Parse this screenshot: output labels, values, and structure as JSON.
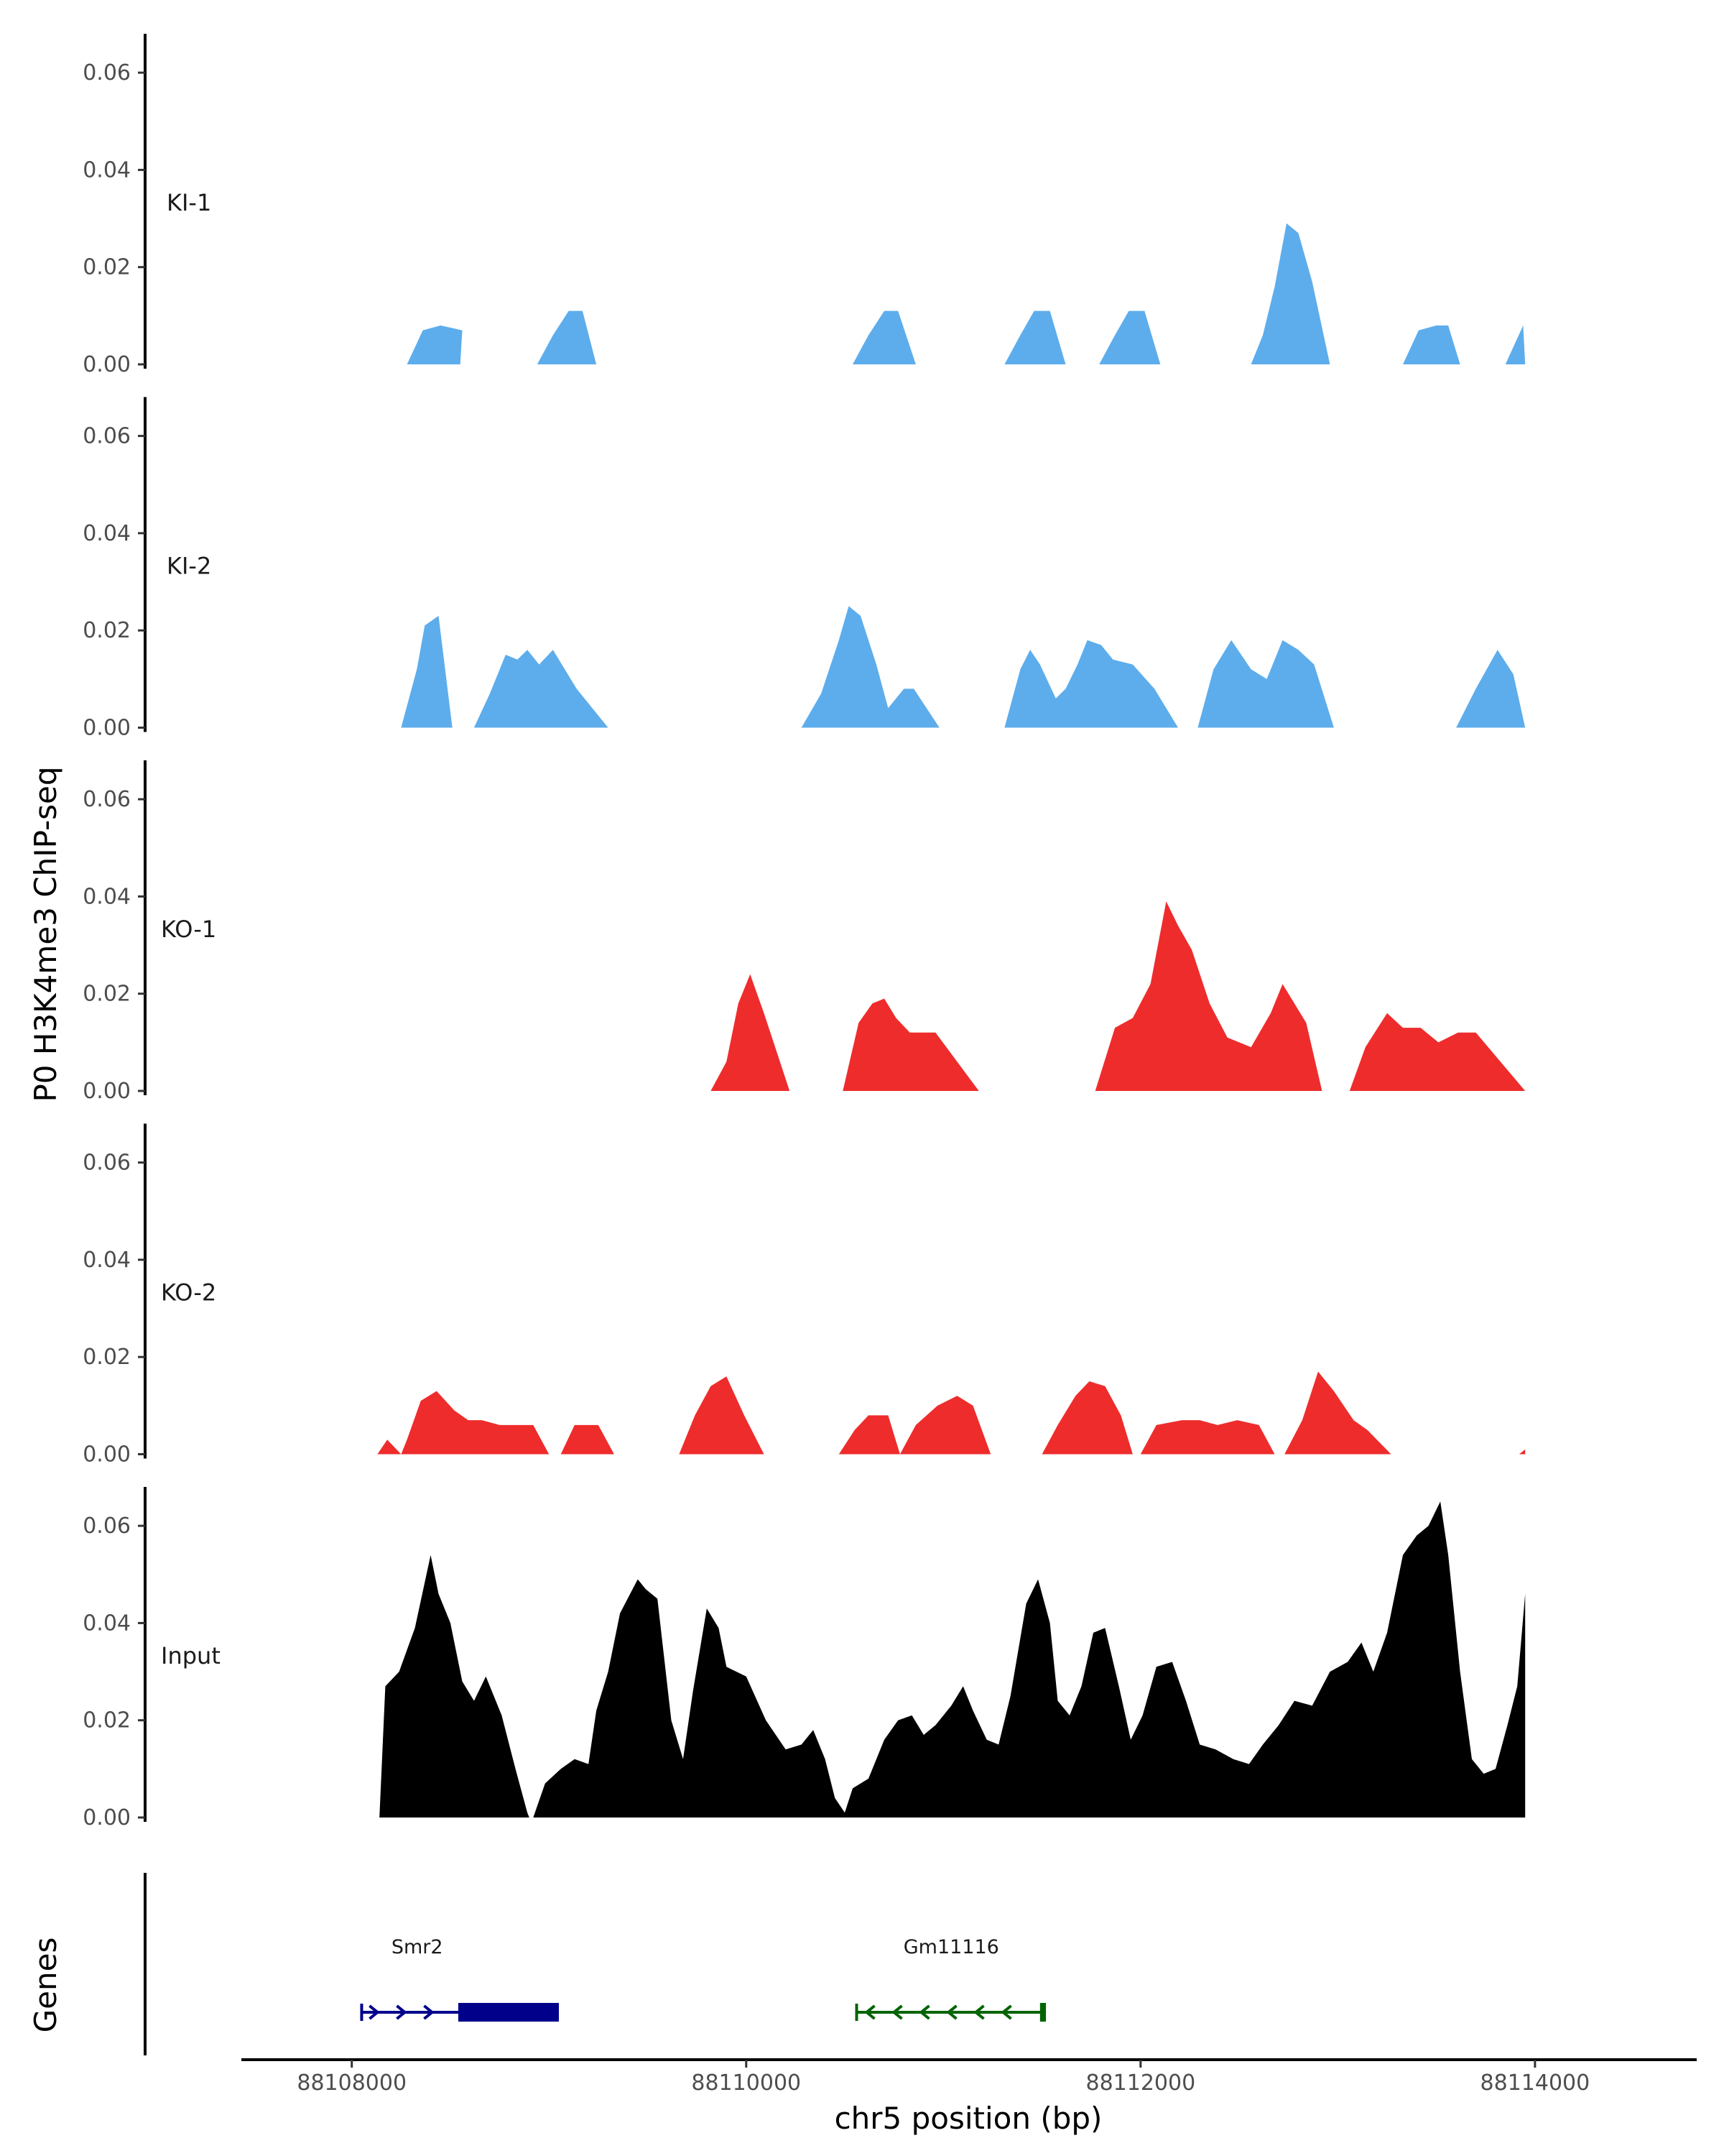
{
  "chart_data": {
    "type": "area",
    "ylabel": "P0 H3K4me3 ChIP-seq",
    "xlabel": "chr5 position (bp)",
    "gene_panel_label": "Genes",
    "xlim": [
      88107440,
      88114820
    ],
    "ylim": [
      0,
      0.068
    ],
    "x_ticks": [
      88108000,
      88110000,
      88112000,
      88114000
    ],
    "x_tick_labels": [
      "88108000",
      "88110000",
      "88112000",
      "88114000"
    ],
    "y_ticks": [
      0,
      0.02,
      0.04,
      0.06
    ],
    "y_tick_labels": [
      "0.00",
      "0.02",
      "0.04",
      "0.06"
    ],
    "tracks": [
      {
        "name": "KI-1",
        "color": "#5DADEC",
        "points": [
          [
            88108280,
            0
          ],
          [
            88108360,
            0.007
          ],
          [
            88108450,
            0.008
          ],
          [
            88108560,
            0.007
          ],
          [
            88108550,
            0
          ],
          [
            88108940,
            0
          ],
          [
            88109020,
            0.006
          ],
          [
            88109100,
            0.011
          ],
          [
            88109170,
            0.011
          ],
          [
            88109240,
            0
          ],
          [
            88110540,
            0
          ],
          [
            88110620,
            0.006
          ],
          [
            88110700,
            0.011
          ],
          [
            88110770,
            0.011
          ],
          [
            88110860,
            0
          ],
          [
            88111310,
            0
          ],
          [
            88111390,
            0.006
          ],
          [
            88111460,
            0.011
          ],
          [
            88111540,
            0.011
          ],
          [
            88111620,
            0
          ],
          [
            88111790,
            0
          ],
          [
            88111870,
            0.006
          ],
          [
            88111940,
            0.011
          ],
          [
            88112020,
            0.011
          ],
          [
            88112100,
            0
          ],
          [
            88112560,
            0
          ],
          [
            88112620,
            0.006
          ],
          [
            88112680,
            0.016
          ],
          [
            88112740,
            0.029
          ],
          [
            88112800,
            0.027
          ],
          [
            88112870,
            0.017
          ],
          [
            88112960,
            0
          ],
          [
            88113330,
            0
          ],
          [
            88113410,
            0.007
          ],
          [
            88113500,
            0.008
          ],
          [
            88113560,
            0.008
          ],
          [
            88113620,
            0
          ],
          [
            88113850,
            0
          ],
          [
            88113940,
            0.008
          ],
          [
            88113950,
            0
          ]
        ]
      },
      {
        "name": "KI-2",
        "color": "#5DADEC",
        "points": [
          [
            88108250,
            0
          ],
          [
            88108330,
            0.012
          ],
          [
            88108370,
            0.021
          ],
          [
            88108440,
            0.023
          ],
          [
            88108510,
            0
          ],
          [
            88108620,
            0
          ],
          [
            88108700,
            0.007
          ],
          [
            88108780,
            0.015
          ],
          [
            88108840,
            0.014
          ],
          [
            88108890,
            0.016
          ],
          [
            88108950,
            0.013
          ],
          [
            88109020,
            0.016
          ],
          [
            88109140,
            0.008
          ],
          [
            88109300,
            0
          ],
          [
            88110280,
            0
          ],
          [
            88110380,
            0.007
          ],
          [
            88110470,
            0.018
          ],
          [
            88110520,
            0.025
          ],
          [
            88110580,
            0.023
          ],
          [
            88110660,
            0.013
          ],
          [
            88110720,
            0.004
          ],
          [
            88110800,
            0.008
          ],
          [
            88110850,
            0.008
          ],
          [
            88110980,
            0
          ],
          [
            88111310,
            0
          ],
          [
            88111390,
            0.012
          ],
          [
            88111440,
            0.016
          ],
          [
            88111490,
            0.013
          ],
          [
            88111570,
            0.006
          ],
          [
            88111620,
            0.008
          ],
          [
            88111680,
            0.013
          ],
          [
            88111730,
            0.018
          ],
          [
            88111800,
            0.017
          ],
          [
            88111860,
            0.014
          ],
          [
            88111960,
            0.013
          ],
          [
            88112070,
            0.008
          ],
          [
            88112190,
            0
          ],
          [
            88112290,
            0
          ],
          [
            88112370,
            0.012
          ],
          [
            88112460,
            0.018
          ],
          [
            88112560,
            0.012
          ],
          [
            88112640,
            0.01
          ],
          [
            88112720,
            0.018
          ],
          [
            88112800,
            0.016
          ],
          [
            88112880,
            0.013
          ],
          [
            88112980,
            0
          ],
          [
            88113600,
            0
          ],
          [
            88113700,
            0.008
          ],
          [
            88113810,
            0.016
          ],
          [
            88113890,
            0.011
          ],
          [
            88113950,
            0
          ]
        ]
      },
      {
        "name": "KO-1",
        "color": "#EE2C2C",
        "points": [
          [
            88109820,
            0
          ],
          [
            88109900,
            0.006
          ],
          [
            88109960,
            0.018
          ],
          [
            88110020,
            0.024
          ],
          [
            88110090,
            0.016
          ],
          [
            88110220,
            0
          ],
          [
            88110490,
            0
          ],
          [
            88110570,
            0.014
          ],
          [
            88110640,
            0.018
          ],
          [
            88110700,
            0.019
          ],
          [
            88110760,
            0.015
          ],
          [
            88110830,
            0.012
          ],
          [
            88110960,
            0.012
          ],
          [
            88111180,
            0
          ],
          [
            88111770,
            0
          ],
          [
            88111870,
            0.013
          ],
          [
            88111960,
            0.015
          ],
          [
            88112050,
            0.022
          ],
          [
            88112130,
            0.039
          ],
          [
            88112190,
            0.034
          ],
          [
            88112260,
            0.029
          ],
          [
            88112350,
            0.018
          ],
          [
            88112440,
            0.011
          ],
          [
            88112560,
            0.009
          ],
          [
            88112660,
            0.016
          ],
          [
            88112720,
            0.022
          ],
          [
            88112840,
            0.014
          ],
          [
            88112920,
            0
          ],
          [
            88113060,
            0
          ],
          [
            88113140,
            0.009
          ],
          [
            88113250,
            0.016
          ],
          [
            88113330,
            0.013
          ],
          [
            88113420,
            0.013
          ],
          [
            88113510,
            0.01
          ],
          [
            88113610,
            0.012
          ],
          [
            88113700,
            0.012
          ],
          [
            88113950,
            0
          ]
        ]
      },
      {
        "name": "KO-2",
        "color": "#EE2C2C",
        "points": [
          [
            88108130,
            0
          ],
          [
            88108180,
            0.003
          ],
          [
            88108250,
            0
          ],
          [
            88108280,
            0.003
          ],
          [
            88108350,
            0.011
          ],
          [
            88108430,
            0.013
          ],
          [
            88108520,
            0.009
          ],
          [
            88108590,
            0.007
          ],
          [
            88108660,
            0.007
          ],
          [
            88108750,
            0.006
          ],
          [
            88108920,
            0.006
          ],
          [
            88109000,
            0
          ],
          [
            88109060,
            0
          ],
          [
            88109130,
            0.006
          ],
          [
            88109250,
            0.006
          ],
          [
            88109330,
            0
          ],
          [
            88109660,
            0
          ],
          [
            88109740,
            0.008
          ],
          [
            88109820,
            0.014
          ],
          [
            88109900,
            0.016
          ],
          [
            88109990,
            0.008
          ],
          [
            88110090,
            0
          ],
          [
            88110470,
            0
          ],
          [
            88110550,
            0.005
          ],
          [
            88110620,
            0.008
          ],
          [
            88110720,
            0.008
          ],
          [
            88110780,
            0
          ],
          [
            88110780,
            0
          ],
          [
            88110860,
            0.006
          ],
          [
            88110970,
            0.01
          ],
          [
            88111070,
            0.012
          ],
          [
            88111150,
            0.01
          ],
          [
            88111240,
            0
          ],
          [
            88111500,
            0
          ],
          [
            88111580,
            0.006
          ],
          [
            88111670,
            0.012
          ],
          [
            88111740,
            0.015
          ],
          [
            88111820,
            0.014
          ],
          [
            88111900,
            0.008
          ],
          [
            88111960,
            0
          ],
          [
            88112000,
            0
          ],
          [
            88112080,
            0.006
          ],
          [
            88112210,
            0.007
          ],
          [
            88112300,
            0.007
          ],
          [
            88112390,
            0.006
          ],
          [
            88112490,
            0.007
          ],
          [
            88112600,
            0.006
          ],
          [
            88112680,
            0
          ],
          [
            88112730,
            0
          ],
          [
            88112820,
            0.007
          ],
          [
            88112900,
            0.017
          ],
          [
            88112980,
            0.013
          ],
          [
            88113080,
            0.007
          ],
          [
            88113150,
            0.005
          ],
          [
            88113270,
            0
          ],
          [
            88113920,
            0
          ],
          [
            88113950,
            0.001
          ],
          [
            88113950,
            0
          ]
        ]
      },
      {
        "name": "Input",
        "color": "#000000",
        "points": [
          [
            88108140,
            0
          ],
          [
            88108170,
            0.027
          ],
          [
            88108240,
            0.03
          ],
          [
            88108320,
            0.039
          ],
          [
            88108400,
            0.054
          ],
          [
            88108440,
            0.046
          ],
          [
            88108500,
            0.04
          ],
          [
            88108560,
            0.028
          ],
          [
            88108620,
            0.024
          ],
          [
            88108680,
            0.029
          ],
          [
            88108760,
            0.021
          ],
          [
            88108830,
            0.01
          ],
          [
            88108890,
            0.001
          ],
          [
            88108900,
            0
          ],
          [
            88108920,
            0
          ],
          [
            88108980,
            0.007
          ],
          [
            88109060,
            0.01
          ],
          [
            88109130,
            0.012
          ],
          [
            88109200,
            0.011
          ],
          [
            88109240,
            0.022
          ],
          [
            88109300,
            0.03
          ],
          [
            88109360,
            0.042
          ],
          [
            88109450,
            0.049
          ],
          [
            88109490,
            0.047
          ],
          [
            88109550,
            0.045
          ],
          [
            88109620,
            0.02
          ],
          [
            88109680,
            0.012
          ],
          [
            88109730,
            0.026
          ],
          [
            88109800,
            0.043
          ],
          [
            88109860,
            0.039
          ],
          [
            88109900,
            0.031
          ],
          [
            88110000,
            0.029
          ],
          [
            88110100,
            0.02
          ],
          [
            88110200,
            0.014
          ],
          [
            88110280,
            0.015
          ],
          [
            88110340,
            0.018
          ],
          [
            88110400,
            0.012
          ],
          [
            88110450,
            0.004
          ],
          [
            88110500,
            0.001
          ],
          [
            88110540,
            0.006
          ],
          [
            88110620,
            0.008
          ],
          [
            88110700,
            0.016
          ],
          [
            88110770,
            0.02
          ],
          [
            88110840,
            0.021
          ],
          [
            88110900,
            0.017
          ],
          [
            88110960,
            0.019
          ],
          [
            88111040,
            0.023
          ],
          [
            88111100,
            0.027
          ],
          [
            88111150,
            0.022
          ],
          [
            88111220,
            0.016
          ],
          [
            88111280,
            0.015
          ],
          [
            88111340,
            0.025
          ],
          [
            88111420,
            0.044
          ],
          [
            88111480,
            0.049
          ],
          [
            88111540,
            0.04
          ],
          [
            88111580,
            0.024
          ],
          [
            88111640,
            0.021
          ],
          [
            88111700,
            0.027
          ],
          [
            88111760,
            0.038
          ],
          [
            88111820,
            0.039
          ],
          [
            88111890,
            0.027
          ],
          [
            88111950,
            0.016
          ],
          [
            88112010,
            0.021
          ],
          [
            88112080,
            0.031
          ],
          [
            88112160,
            0.032
          ],
          [
            88112230,
            0.024
          ],
          [
            88112300,
            0.015
          ],
          [
            88112380,
            0.014
          ],
          [
            88112470,
            0.012
          ],
          [
            88112550,
            0.011
          ],
          [
            88112620,
            0.015
          ],
          [
            88112700,
            0.019
          ],
          [
            88112780,
            0.024
          ],
          [
            88112870,
            0.023
          ],
          [
            88112960,
            0.03
          ],
          [
            88113050,
            0.032
          ],
          [
            88113120,
            0.036
          ],
          [
            88113180,
            0.03
          ],
          [
            88113250,
            0.038
          ],
          [
            88113330,
            0.054
          ],
          [
            88113400,
            0.058
          ],
          [
            88113460,
            0.06
          ],
          [
            88113520,
            0.065
          ],
          [
            88113560,
            0.054
          ],
          [
            88113620,
            0.03
          ],
          [
            88113680,
            0.012
          ],
          [
            88113740,
            0.009
          ],
          [
            88113800,
            0.01
          ],
          [
            88113860,
            0.019
          ],
          [
            88113910,
            0.027
          ],
          [
            88113950,
            0.046
          ],
          [
            88113950,
            0
          ]
        ]
      }
    ],
    "genes": [
      {
        "name": "Smr2",
        "strand": "+",
        "color": "#00008B",
        "start": 88108050,
        "end": 88109050,
        "thick_start": 88108540,
        "thick_end": 88109050
      },
      {
        "name": "Gm11116",
        "strand": "-",
        "color": "#006400",
        "start": 88110560,
        "end": 88111520,
        "thick_start": 88111490,
        "thick_end": 88111520
      }
    ]
  }
}
